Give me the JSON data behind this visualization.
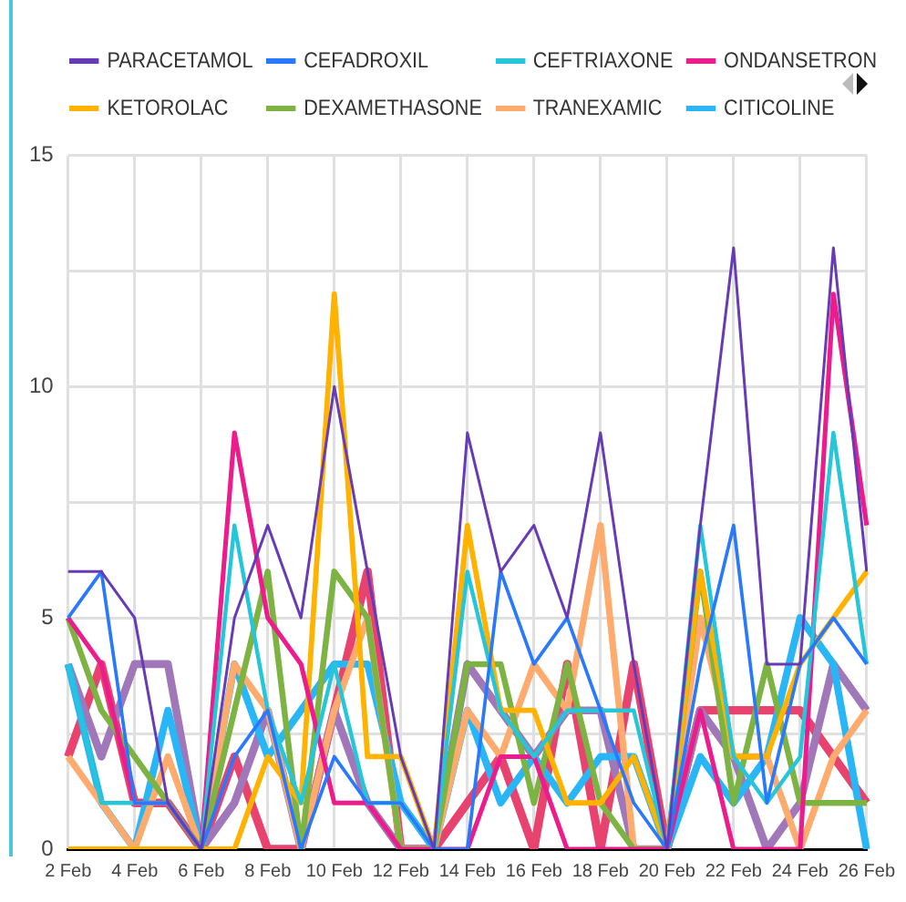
{
  "chart_data": {
    "type": "line",
    "categories": [
      "2 Feb",
      null,
      "4 Feb",
      null,
      "6 Feb",
      null,
      "8 Feb",
      null,
      "10 Feb",
      null,
      "12 Feb",
      null,
      "14 Feb",
      null,
      "16 Feb",
      null,
      "18 Feb",
      null,
      "20 Feb",
      null,
      "22 Feb",
      null,
      "24 Feb",
      null,
      "26 Feb"
    ],
    "ylim": [
      0,
      15
    ],
    "yticks": [
      0,
      {
        "value": 2.5,
        "label": null
      },
      5,
      {
        "value": 7.5,
        "label": null
      },
      10,
      {
        "value": 12.5,
        "label": null
      },
      15
    ],
    "grid": true,
    "legend": "top",
    "marker": "none",
    "line_style": "solid",
    "series": [
      {
        "name": "PARACETAMOL",
        "color": "#673ab7",
        "values": [
          6,
          6,
          5,
          1,
          0,
          5,
          7,
          5,
          10,
          6,
          2,
          0,
          9,
          6,
          7,
          5,
          9,
          4,
          0,
          7,
          13,
          4,
          4,
          13,
          6
        ]
      },
      {
        "name": "CEFADROXIL",
        "color": "#2979ff",
        "values": [
          5,
          6,
          1,
          1,
          0,
          2,
          3,
          0,
          2,
          1,
          1,
          0,
          0,
          6,
          4,
          5,
          3,
          1,
          0,
          4,
          7,
          1,
          4,
          5,
          4
        ]
      },
      {
        "name": "CEFTRIAXONE",
        "color": "#26c6da",
        "values": [
          4,
          1,
          1,
          1,
          0,
          7,
          3,
          1,
          4,
          1,
          1,
          0,
          6,
          3,
          2,
          3,
          3,
          3,
          0,
          7,
          2,
          1,
          2,
          9,
          4
        ]
      },
      {
        "name": "ONDANSETRON",
        "color": "#ec1c8c",
        "values": [
          5,
          4,
          1,
          1,
          0,
          9,
          5,
          4,
          1,
          1,
          0,
          0,
          0,
          2,
          2,
          0,
          0,
          0,
          0,
          3,
          0,
          0,
          0,
          12,
          7
        ]
      },
      {
        "name": "KETOROLAC",
        "color": "#ffb300",
        "values": [
          0,
          0,
          0,
          0,
          0,
          0,
          2,
          1,
          12,
          2,
          2,
          0,
          7,
          3,
          3,
          1,
          1,
          2,
          0,
          6,
          2,
          2,
          4,
          5,
          6
        ]
      },
      {
        "name": "DEXAMETHASONE",
        "color": "#7cb342",
        "values": [
          5,
          3,
          2,
          1,
          0,
          3,
          6,
          0,
          6,
          5,
          0,
          0,
          4,
          4,
          1,
          4,
          1,
          0,
          0,
          6,
          1,
          4,
          1,
          1,
          1
        ]
      },
      {
        "name": "TRANEXAMIC",
        "color": "#ffab6e",
        "values": [
          2,
          1,
          0,
          2,
          0,
          4,
          3,
          0,
          3,
          5,
          0,
          0,
          3,
          2,
          4,
          3,
          7,
          0,
          0,
          5,
          2,
          2,
          0,
          2,
          3
        ]
      },
      {
        "name": "CITICOLINE",
        "color": "#29b6f6",
        "values": [
          4,
          1,
          0,
          3,
          0,
          4,
          2,
          3,
          4,
          4,
          1,
          0,
          3,
          1,
          2,
          1,
          2,
          2,
          0,
          2,
          1,
          2,
          5,
          4,
          0
        ]
      },
      {
        "color": "#a077b8",
        "values": [
          4,
          2,
          4,
          4,
          0,
          1,
          3,
          0,
          3,
          1,
          0,
          0,
          4,
          3,
          2,
          3,
          3,
          0,
          0,
          3,
          2,
          0,
          1,
          4,
          3
        ]
      },
      {
        "color": "#e8436e",
        "values": [
          2,
          4,
          1,
          1,
          0,
          2,
          0,
          0,
          3,
          6,
          0,
          0,
          1,
          2,
          0,
          4,
          0,
          4,
          0,
          3,
          3,
          3,
          3,
          2,
          1
        ]
      }
    ]
  }
}
